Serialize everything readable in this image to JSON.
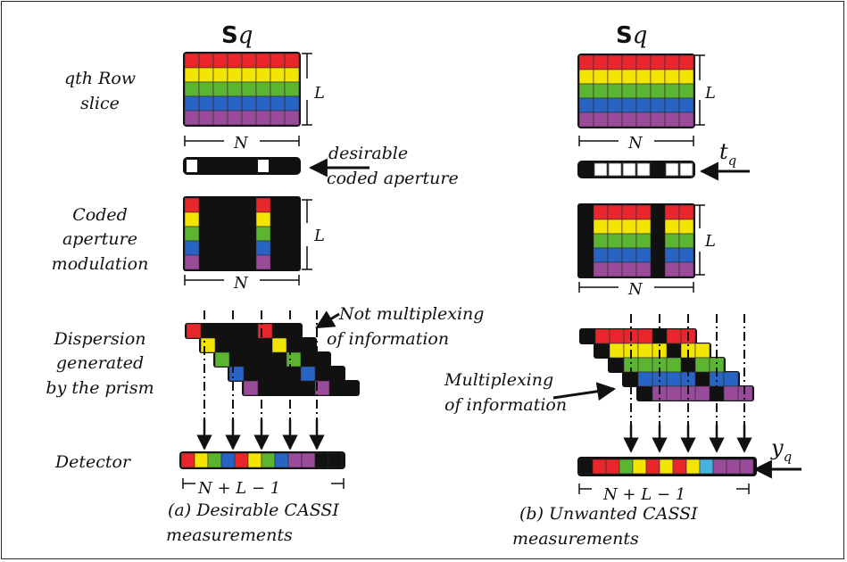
{
  "colors": [
    "#e8262b",
    "#f2e600",
    "#5cb531",
    "#2864c3",
    "#9a4a9a"
  ],
  "highlight_color": "#49b3e0",
  "left": {
    "title_bold": "S",
    "title_italic": "q",
    "row_slice_label": [
      "qth Row",
      "slice"
    ],
    "dim_L": "L",
    "dim_N": "N",
    "coded_aperture_label": [
      "desirable",
      "coded aperture"
    ],
    "modulation_label": [
      "Coded",
      "aperture",
      "modulation"
    ],
    "dispersion_label": [
      "Dispersion",
      "generated",
      "by the prism"
    ],
    "not_multiplexing_label": [
      "Not multiplexing",
      "of information"
    ],
    "detector_label": "Detector",
    "detector_dim": "N + L  − 1",
    "caption": [
      "(a) Desirable CASSI",
      "measurements"
    ]
  },
  "right": {
    "title_bold": "S",
    "title_italic": "q",
    "dim_L": "L",
    "dim_N": "N",
    "t_label": "t",
    "t_sub": "q",
    "multiplexing_label": [
      "Multiplexing",
      "of information"
    ],
    "y_label": "y",
    "y_sub": "q",
    "detector_dim": "N + L  − 1",
    "caption": [
      "(b)  Unwanted CASSI",
      "measurements"
    ]
  }
}
